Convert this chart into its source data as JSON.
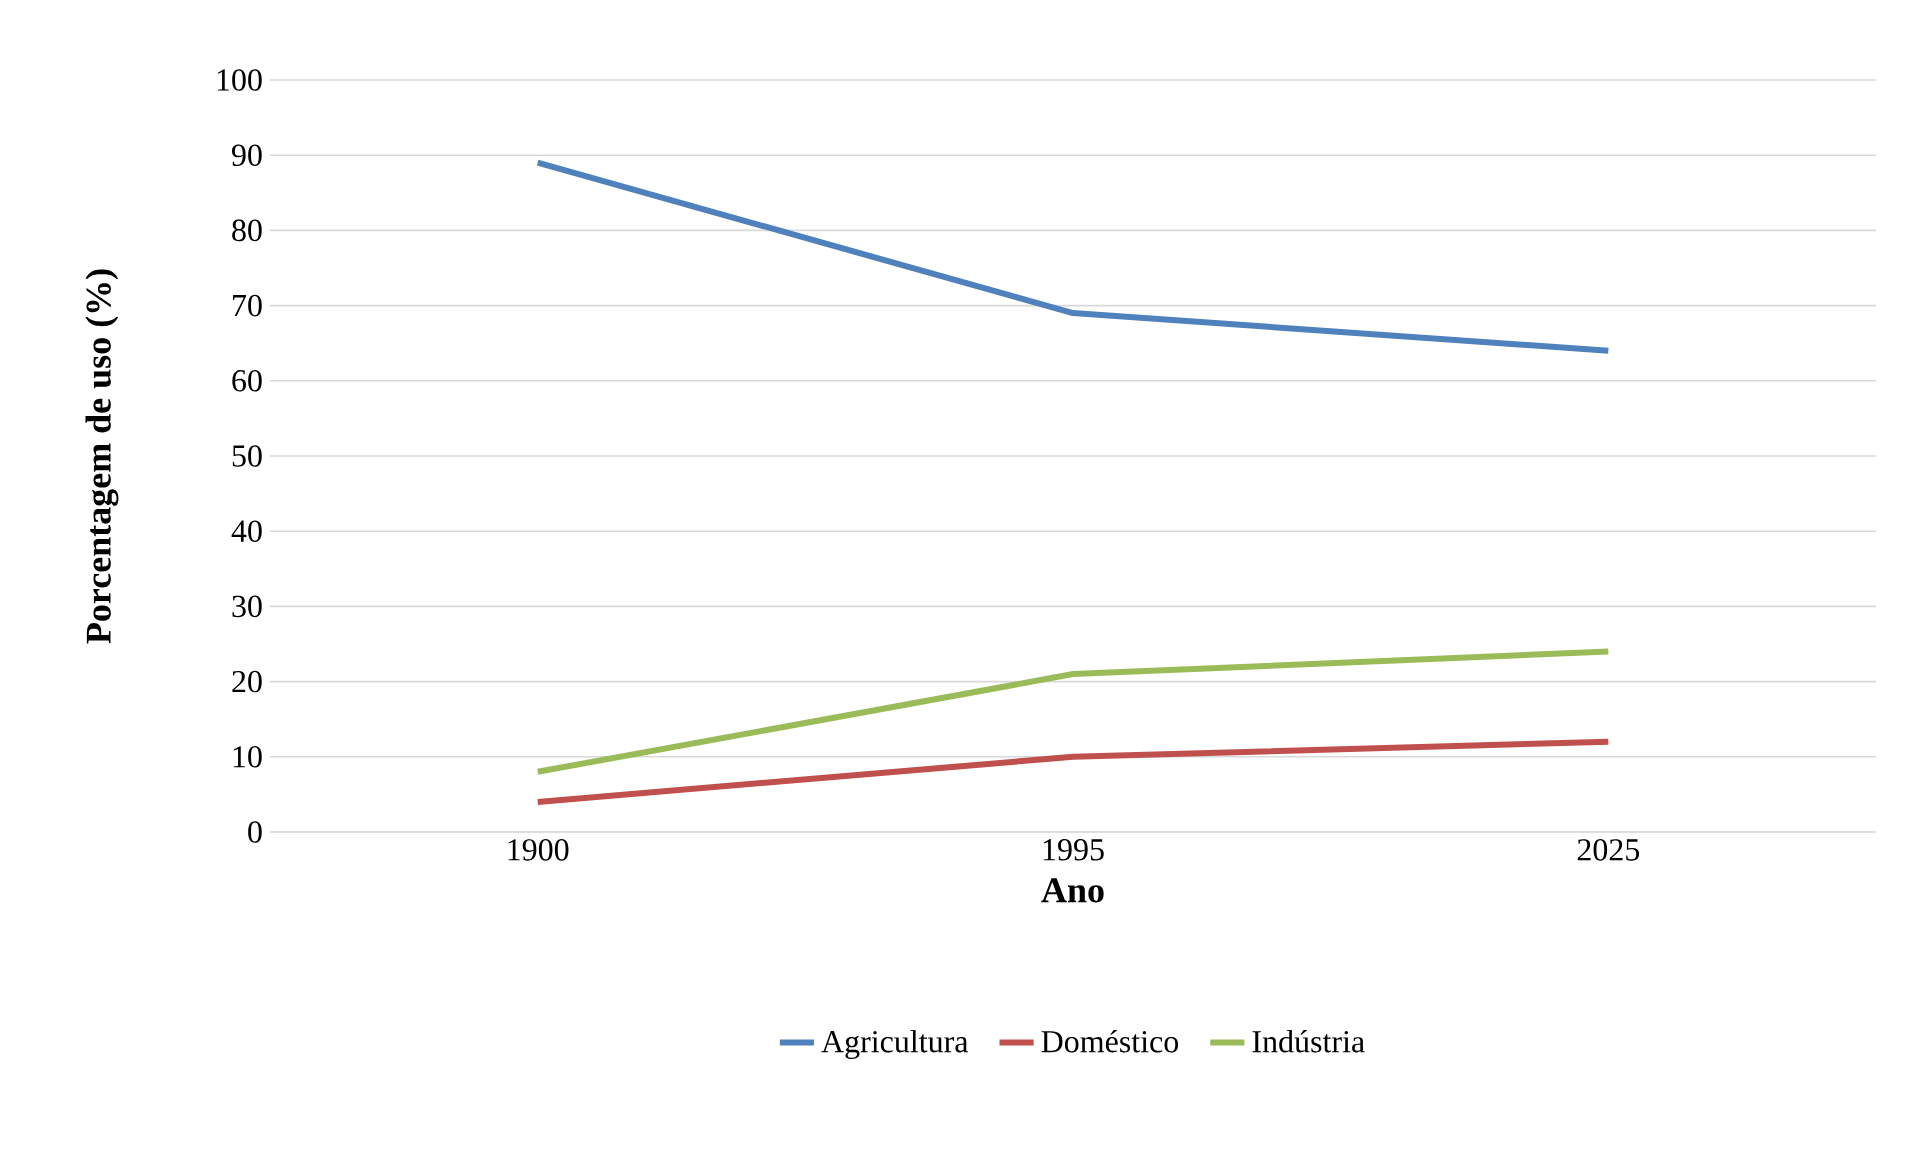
{
  "chart_data": {
    "type": "line",
    "xlabel": "Ano",
    "ylabel": "Porcentagem de uso (%)",
    "categories": [
      "1900",
      "1995",
      "2025"
    ],
    "series": [
      {
        "name": "Agricultura",
        "color": "#4f81bd",
        "values": [
          89,
          69,
          64
        ]
      },
      {
        "name": "Doméstico",
        "color": "#c0504d",
        "values": [
          4,
          10,
          12
        ]
      },
      {
        "name": "Indústria",
        "color": "#9bbb59",
        "values": [
          8,
          21,
          24
        ]
      }
    ],
    "ylim": [
      0,
      100
    ],
    "yticks": [
      0,
      10,
      20,
      30,
      40,
      50,
      60,
      70,
      80,
      90,
      100
    ],
    "grid": "y",
    "legend": "bottom"
  }
}
